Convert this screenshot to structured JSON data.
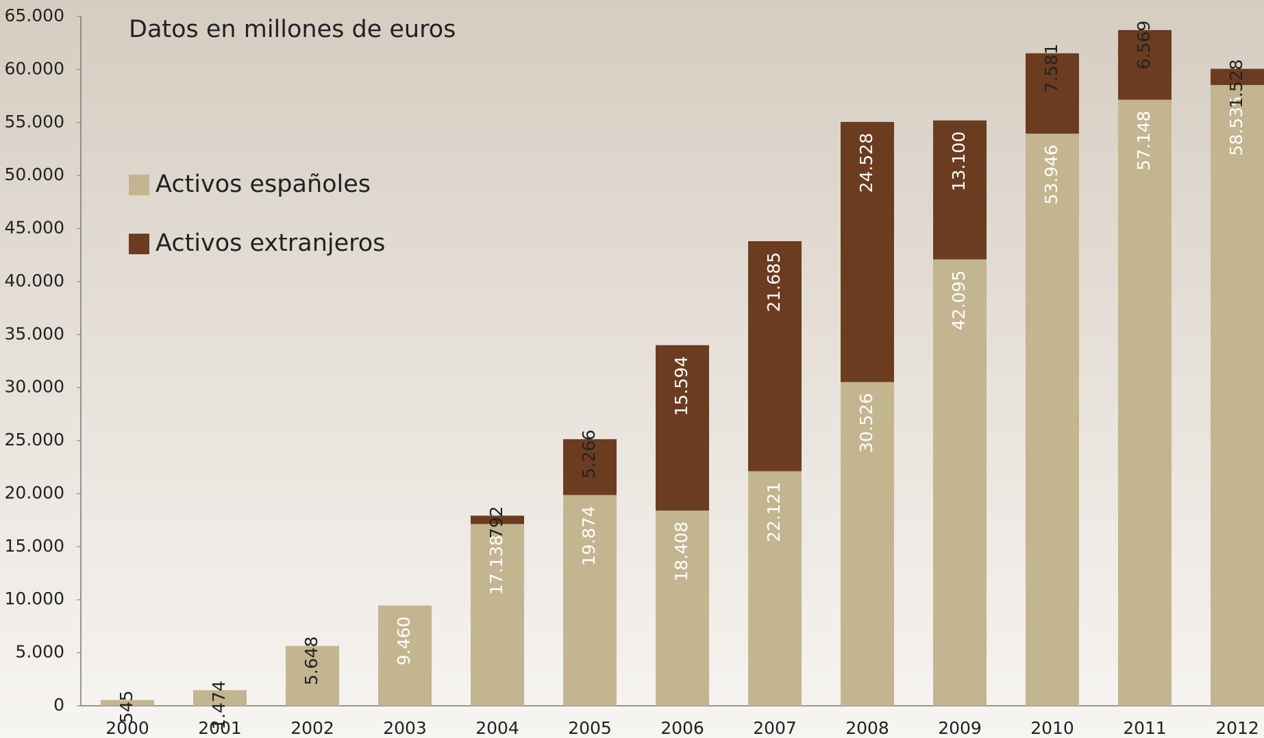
{
  "chart_data": {
    "type": "stacked_bar",
    "title": "Datos en millones de euros",
    "categories": [
      "2000",
      "2001",
      "2002",
      "2003",
      "2004",
      "2005",
      "2006",
      "2007",
      "2008",
      "2009",
      "2010",
      "2011",
      "2012"
    ],
    "series": [
      {
        "name": "Activos españoles",
        "color": "#c3b590",
        "values": [
          545,
          1474,
          5648,
          9460,
          17138,
          19874,
          18408,
          22121,
          30526,
          42095,
          53946,
          57148,
          58535
        ],
        "value_labels": [
          "545",
          "1.474",
          "5.648",
          "9.460",
          "17.138",
          "19.874",
          "18.408",
          "22.121",
          "30.526",
          "42.095",
          "53.946",
          "57.148",
          "58.535"
        ]
      },
      {
        "name": "Activos extranjeros",
        "color": "#6c3c20",
        "values": [
          null,
          null,
          null,
          null,
          792,
          5266,
          15594,
          21685,
          24528,
          13100,
          7581,
          6569,
          1528
        ],
        "value_labels": [
          null,
          null,
          null,
          null,
          "792",
          "5.266",
          "15.594",
          "21.685",
          "24.528",
          "13.100",
          "7.581",
          "6.569",
          "1.528"
        ]
      }
    ],
    "ylim": [
      0,
      65000
    ],
    "yticks": [
      0,
      {
        "value": 5000,
        "label": "5.000"
      },
      {
        "value": 10000,
        "label": "10.000"
      },
      {
        "value": 15000,
        "label": "15.000"
      },
      {
        "value": 20000,
        "label": "20.000"
      },
      {
        "value": 25000,
        "label": "25.000"
      },
      {
        "value": 30000,
        "label": "30.000"
      },
      {
        "value": 35000,
        "label": "35.000"
      },
      {
        "value": 40000,
        "label": "40.000"
      },
      {
        "value": 45000,
        "label": "45.000"
      },
      {
        "value": 50000,
        "label": "50.000"
      },
      {
        "value": 55000,
        "label": "55.000"
      },
      {
        "value": 60000,
        "label": "60.000"
      },
      {
        "value": 65000,
        "label": "65.000"
      }
    ],
    "legend": "upper left"
  }
}
